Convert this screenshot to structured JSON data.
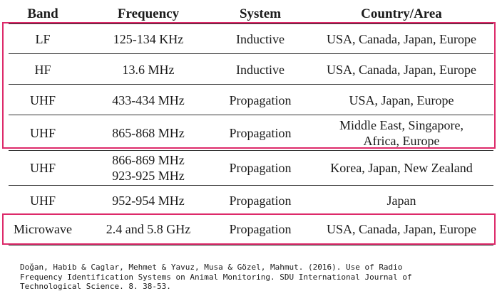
{
  "table": {
    "headers": [
      "Band",
      "Frequency",
      "System",
      "Country/Area"
    ],
    "rows": [
      {
        "band": "LF",
        "frequency": [
          "125-134 KHz"
        ],
        "system": "Inductive",
        "area": [
          "USA, Canada, Japan, Europe"
        ]
      },
      {
        "band": "HF",
        "frequency": [
          "13.6 MHz"
        ],
        "system": "Inductive",
        "area": [
          "USA, Canada, Japan, Europe"
        ]
      },
      {
        "band": "UHF",
        "frequency": [
          "433-434 MHz"
        ],
        "system": "Propagation",
        "area": [
          "USA, Japan, Europe"
        ]
      },
      {
        "band": "UHF",
        "frequency": [
          "865-868 MHz"
        ],
        "system": "Propagation",
        "area": [
          "Middle East, Singapore,",
          "Africa, Europe"
        ]
      },
      {
        "band": "UHF",
        "frequency": [
          "866-869 MHz",
          "923-925 MHz"
        ],
        "system": "Propagation",
        "area": [
          "Korea, Japan, New Zealand"
        ]
      },
      {
        "band": "UHF",
        "frequency": [
          "952-954 MHz"
        ],
        "system": "Propagation",
        "area": [
          "Japan"
        ]
      },
      {
        "band": "Microwave",
        "frequency": [
          "2.4 and 5.8 GHz"
        ],
        "system": "Propagation",
        "area": [
          "USA, Canada, Japan, Europe"
        ]
      }
    ]
  },
  "highlight_color": "#dd2a6a",
  "citation": "Doğan, Habib & Caglar, Mehmet & Yavuz, Musa & Gözel, Mahmut. (2016). Use of Radio\nFrequency Identification Systems on Animal Monitoring. SDU International Journal of\nTechnological Science. 8. 38-53."
}
